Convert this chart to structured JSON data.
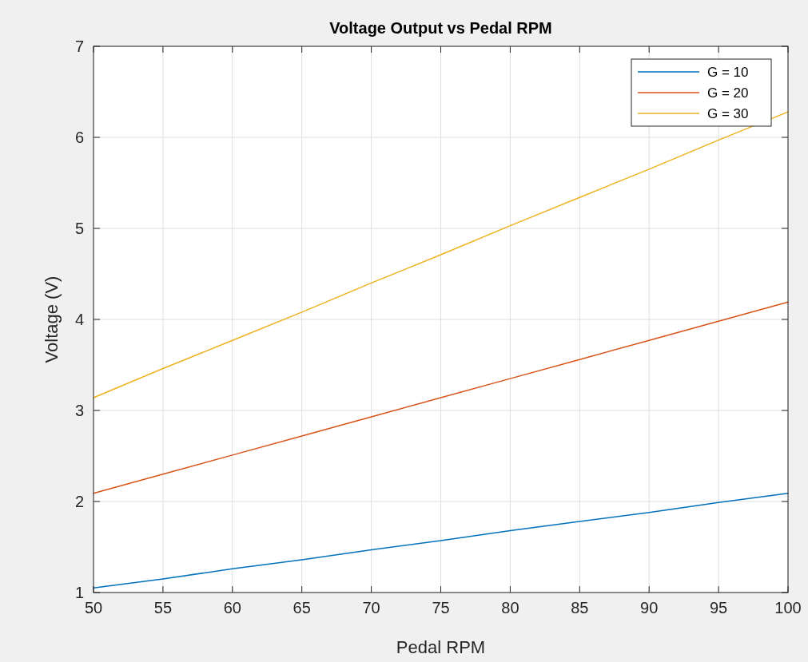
{
  "chart_data": {
    "type": "line",
    "title": "Voltage Output vs Pedal RPM",
    "xlabel": "Pedal RPM",
    "ylabel": "Voltage (V)",
    "x": [
      50,
      55,
      60,
      65,
      70,
      75,
      80,
      85,
      90,
      95,
      100
    ],
    "series": [
      {
        "name": "G = 10",
        "color": "#0072bd",
        "values": [
          1.05,
          1.15,
          1.26,
          1.36,
          1.47,
          1.57,
          1.68,
          1.78,
          1.88,
          1.99,
          2.09
        ]
      },
      {
        "name": "G = 20",
        "color": "#d95319",
        "values": [
          2.09,
          2.3,
          2.51,
          2.72,
          2.93,
          3.14,
          3.35,
          3.56,
          3.77,
          3.98,
          4.19
        ]
      },
      {
        "name": "G = 30",
        "color": "#edb120",
        "values": [
          3.14,
          3.46,
          3.77,
          4.08,
          4.4,
          4.71,
          5.03,
          5.34,
          5.65,
          5.97,
          6.28
        ]
      }
    ],
    "xlim": [
      50,
      100
    ],
    "xticks": [
      50,
      55,
      60,
      65,
      70,
      75,
      80,
      85,
      90,
      95,
      100
    ],
    "ylim": [
      1,
      7
    ],
    "yticks": [
      1,
      2,
      3,
      4,
      5,
      6,
      7
    ],
    "grid": true,
    "legend": "top right",
    "marker": "none",
    "line_style": "solid"
  }
}
